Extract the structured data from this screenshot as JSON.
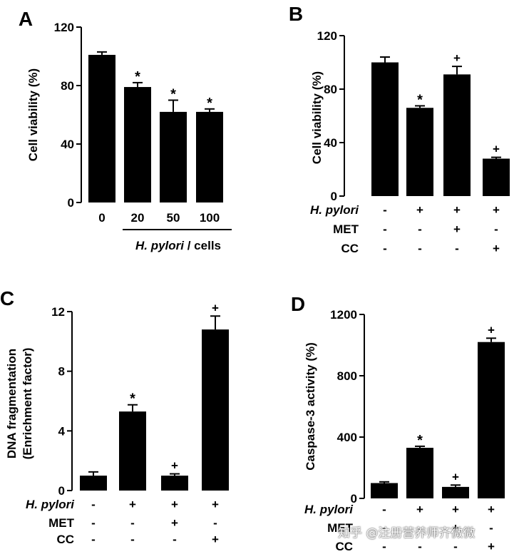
{
  "figure": {
    "watermark": "知乎 @注册营养师齐微微"
  },
  "chart_data": [
    {
      "panel": "A",
      "type": "bar",
      "ylabel": "Cell viability (%)",
      "ylim": [
        0,
        120
      ],
      "yticks": [
        "0",
        "40",
        "80",
        "120"
      ],
      "categories": [
        "0",
        "20",
        "50",
        "100"
      ],
      "values": [
        101,
        79,
        62,
        62
      ],
      "errors": [
        2,
        3,
        8,
        2
      ],
      "marks": [
        "",
        "*",
        "*",
        "*"
      ],
      "xlabel_italic": "H. pylori",
      "xlabel_rest": " / cells"
    },
    {
      "panel": "B",
      "type": "bar",
      "ylabel": "Cell viability (%)",
      "ylim": [
        0,
        120
      ],
      "yticks": [
        "0",
        "40",
        "80",
        "120"
      ],
      "values": [
        100,
        66,
        91,
        28
      ],
      "errors": [
        4,
        1.5,
        6,
        1
      ],
      "marks": [
        "",
        "*",
        "+",
        "+"
      ],
      "conditions": [
        {
          "label": "H. pylori",
          "italic": true,
          "signs": [
            "-",
            "+",
            "+",
            "+"
          ]
        },
        {
          "label": "MET",
          "italic": false,
          "signs": [
            "-",
            "-",
            "+",
            "-"
          ]
        },
        {
          "label": "CC",
          "italic": false,
          "signs": [
            "-",
            "-",
            "-",
            "+"
          ]
        }
      ]
    },
    {
      "panel": "C",
      "type": "bar",
      "ylabel": "DNA fragmentation",
      "ylabel2": "(Enrichment factor)",
      "ylim": [
        0,
        12
      ],
      "yticks": [
        "0",
        "4",
        "8",
        "12"
      ],
      "values": [
        1,
        5.3,
        1,
        10.8
      ],
      "errors": [
        0.25,
        0.45,
        0.12,
        0.9
      ],
      "marks": [
        "",
        "*",
        "+",
        "+"
      ],
      "conditions": [
        {
          "label": "H. pylori",
          "italic": true,
          "signs": [
            "-",
            "+",
            "+",
            "+"
          ]
        },
        {
          "label": "MET",
          "italic": false,
          "signs": [
            "-",
            "-",
            "+",
            "-"
          ]
        },
        {
          "label": "CC",
          "italic": false,
          "signs": [
            "-",
            "-",
            "-",
            "+"
          ]
        }
      ]
    },
    {
      "panel": "D",
      "type": "bar",
      "ylabel": "Caspase-3 activity (%)",
      "ylim": [
        0,
        1200
      ],
      "yticks": [
        "0",
        "400",
        "800",
        "1200"
      ],
      "values": [
        100,
        330,
        75,
        1020
      ],
      "errors": [
        8,
        10,
        12,
        25
      ],
      "marks": [
        "",
        "*",
        "+",
        "+"
      ],
      "conditions": [
        {
          "label": "H. pylori",
          "italic": true,
          "signs": [
            "-",
            "+",
            "+",
            "+"
          ]
        },
        {
          "label": "MET",
          "italic": false,
          "signs": [
            "-",
            "-",
            "+",
            "-"
          ]
        },
        {
          "label": "CC",
          "italic": false,
          "signs": [
            "-",
            "-",
            "-",
            "+"
          ]
        }
      ]
    }
  ]
}
